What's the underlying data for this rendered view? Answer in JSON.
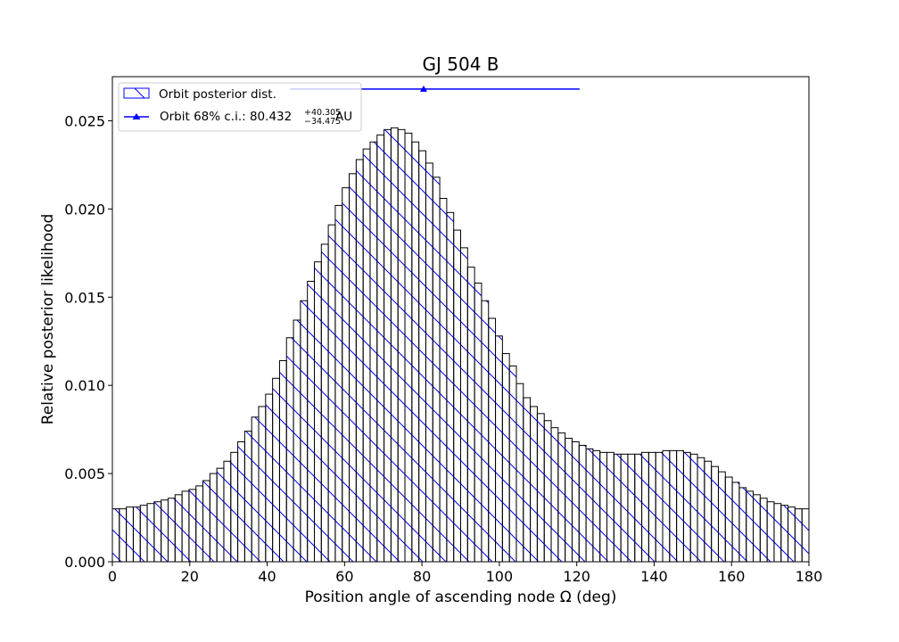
{
  "chart_data": {
    "type": "bar",
    "title": "GJ 504 B",
    "xlabel": "Position angle of ascending node Ω (deg)",
    "ylabel": "Relative posterior likelihood",
    "xlim": [
      0,
      180
    ],
    "ylim": [
      0,
      0.0275
    ],
    "x_ticks": [
      0,
      20,
      40,
      60,
      80,
      100,
      120,
      140,
      160,
      180
    ],
    "y_ticks": [
      "0.000",
      "0.005",
      "0.010",
      "0.015",
      "0.020",
      "0.025"
    ],
    "y_tick_values": [
      0,
      0.005,
      0.01,
      0.015,
      0.02,
      0.025
    ],
    "bin_width": 1.8,
    "grid": false,
    "legend_position": "upper-left",
    "series": [
      {
        "name": "Orbit posterior dist.",
        "style": "hatched-histogram",
        "values": [
          0.003,
          0.003,
          0.0031,
          0.0031,
          0.0032,
          0.0033,
          0.0034,
          0.0035,
          0.0036,
          0.0038,
          0.004,
          0.0041,
          0.0043,
          0.0046,
          0.005,
          0.0053,
          0.0057,
          0.0062,
          0.0068,
          0.0074,
          0.0082,
          0.0088,
          0.0095,
          0.0104,
          0.0114,
          0.0127,
          0.0137,
          0.0148,
          0.0159,
          0.017,
          0.018,
          0.0191,
          0.0202,
          0.0212,
          0.022,
          0.0228,
          0.0234,
          0.0238,
          0.0242,
          0.0245,
          0.0246,
          0.0245,
          0.0243,
          0.0238,
          0.0233,
          0.0226,
          0.0218,
          0.0206,
          0.0198,
          0.0188,
          0.0178,
          0.0167,
          0.0158,
          0.0148,
          0.0138,
          0.0128,
          0.0118,
          0.0111,
          0.0101,
          0.0093,
          0.0088,
          0.0084,
          0.008,
          0.0076,
          0.0073,
          0.007,
          0.0068,
          0.0066,
          0.0064,
          0.0063,
          0.0062,
          0.0062,
          0.0061,
          0.0061,
          0.0061,
          0.0061,
          0.0062,
          0.0062,
          0.0062,
          0.0063,
          0.0063,
          0.0063,
          0.0062,
          0.0061,
          0.0059,
          0.0057,
          0.0054,
          0.0051,
          0.0048,
          0.0045,
          0.0042,
          0.004,
          0.0038,
          0.0036,
          0.0034,
          0.0033,
          0.0032,
          0.0031,
          0.003,
          0.003
        ]
      },
      {
        "name": "Orbit 68% c.i.",
        "style": "errorbar",
        "point": 80.432,
        "y": 0.0268,
        "minus": 34.475,
        "plus": 40.305,
        "label_prefix": "Orbit 68% c.i.: 80.432",
        "label_sup": "+40.305",
        "label_sub": "−34.475",
        "label_suffix": " AU"
      }
    ],
    "colors": {
      "hatch": "#0000ff",
      "bar_edge": "#000000",
      "errorbar": "#0000ff"
    }
  }
}
